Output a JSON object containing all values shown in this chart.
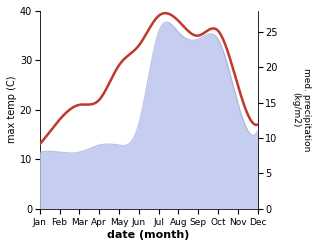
{
  "months": [
    "Jan",
    "Feb",
    "Mar",
    "Apr",
    "May",
    "Jun",
    "Jul",
    "Aug",
    "Sep",
    "Oct",
    "Nov",
    "Dec"
  ],
  "temp": [
    13,
    18,
    21,
    22,
    29,
    33,
    39,
    38,
    35,
    36,
    25,
    17
  ],
  "precip": [
    8,
    8,
    8,
    9,
    9,
    12,
    25,
    25,
    24,
    24,
    15,
    11
  ],
  "temp_color": "#c0392b",
  "precip_fill_color": "#c5cdf0",
  "precip_line_color": "#9099cc",
  "ylabel_left": "max temp (C)",
  "ylabel_right": "med. precipitation\n(kg/m2)",
  "xlabel": "date (month)",
  "ylim_left": [
    0,
    40
  ],
  "ylim_right": [
    0,
    28
  ],
  "left_ticks": [
    0,
    10,
    20,
    30,
    40
  ],
  "right_ticks": [
    0,
    5,
    10,
    15,
    20,
    25
  ],
  "bg_color": "#ffffff"
}
